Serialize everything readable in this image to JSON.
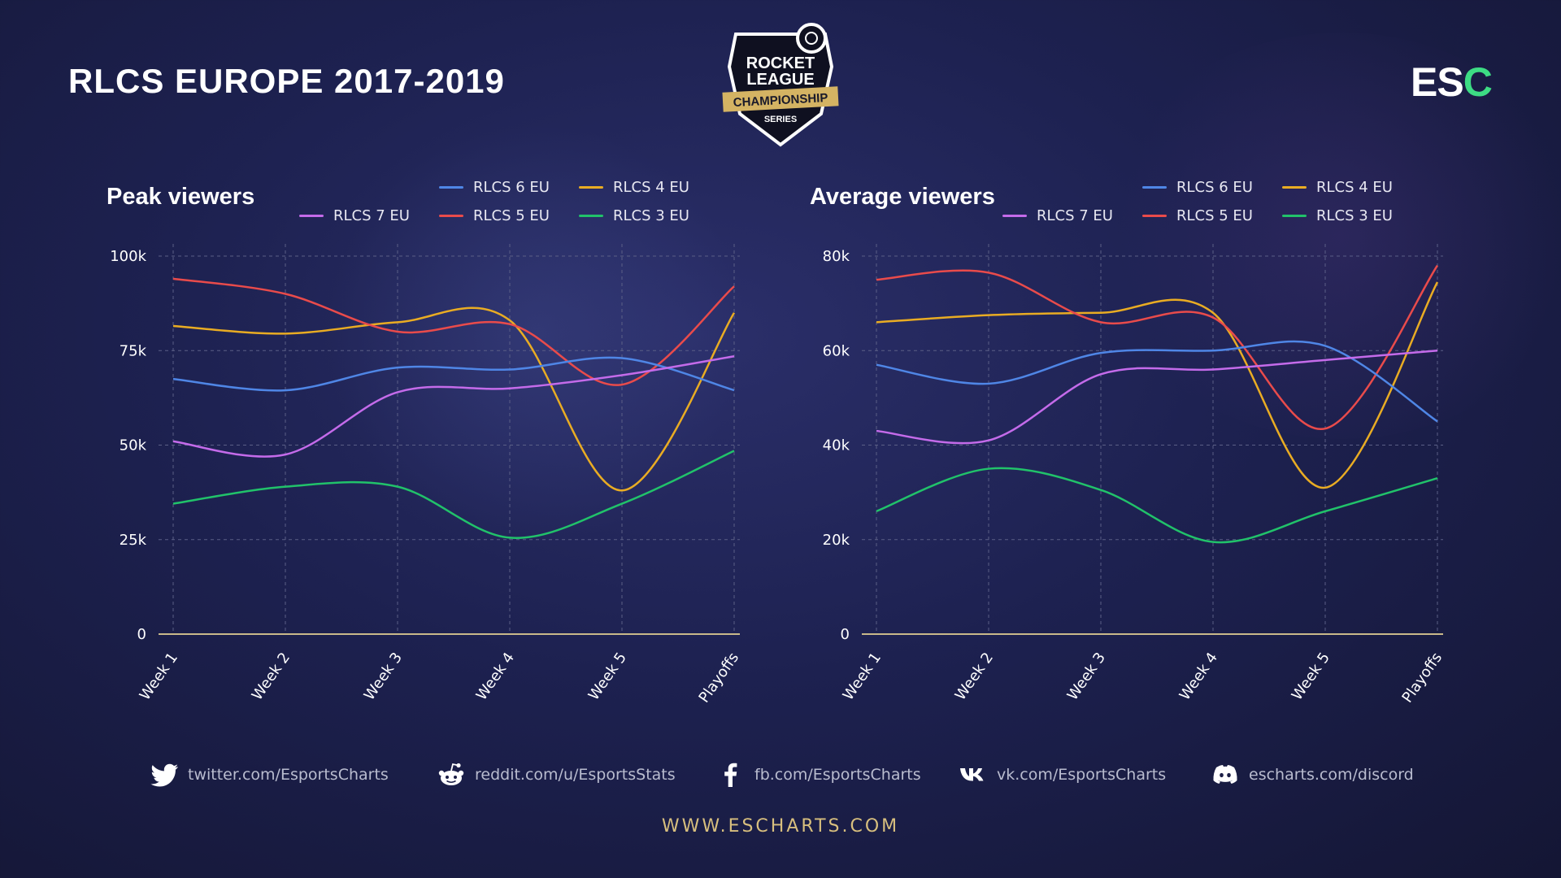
{
  "header": {
    "title": "RLCS EUROPE 2017-2019",
    "logo": {
      "line1": "ROCKET",
      "line2": "LEAGUE",
      "band": "CHAMPIONSHIP",
      "sub": "SERIES"
    },
    "brand": {
      "main": "ES",
      "accent": "C"
    }
  },
  "colors": {
    "RLCS 7 EU": "#c46bea",
    "RLCS 6 EU": "#4f86e6",
    "RLCS 5 EU": "#e94b4b",
    "RLCS 4 EU": "#e9ac23",
    "RLCS 3 EU": "#21c26a",
    "axis": "#c9b98a",
    "grid": "#5b5f86",
    "tick": "#ffffff"
  },
  "chart_data": [
    {
      "type": "line",
      "title": "Peak viewers",
      "xlabel": "",
      "ylabel": "",
      "categories": [
        "Week 1",
        "Week 2",
        "Week 3",
        "Week 4",
        "Week 5",
        "Playoffs"
      ],
      "ylim": [
        0,
        100000
      ],
      "yticks": [
        0,
        25000,
        50000,
        75000,
        100000
      ],
      "ytick_labels": [
        "0",
        "25k",
        "50k",
        "75k",
        "100k"
      ],
      "legend_position": "top-right",
      "grid": true,
      "series": [
        {
          "name": "RLCS 7 EU",
          "values": [
            51000,
            47500,
            64000,
            65000,
            68500,
            73500
          ]
        },
        {
          "name": "RLCS 6 EU",
          "values": [
            67500,
            64500,
            70500,
            70000,
            73000,
            64500
          ]
        },
        {
          "name": "RLCS 5 EU",
          "values": [
            94000,
            90000,
            80000,
            82000,
            66000,
            92000
          ]
        },
        {
          "name": "RLCS 4 EU",
          "values": [
            81500,
            79500,
            82500,
            83000,
            38000,
            85000
          ]
        },
        {
          "name": "RLCS 3 EU",
          "values": [
            34500,
            39000,
            39000,
            25500,
            34500,
            48500
          ]
        }
      ]
    },
    {
      "type": "line",
      "title": "Average viewers",
      "xlabel": "",
      "ylabel": "",
      "categories": [
        "Week 1",
        "Week 2",
        "Week 3",
        "Week 4",
        "Week 5",
        "Playoffs"
      ],
      "ylim": [
        0,
        80000
      ],
      "yticks": [
        0,
        20000,
        40000,
        60000,
        80000
      ],
      "ytick_labels": [
        "0",
        "20k",
        "40k",
        "60k",
        "80k"
      ],
      "legend_position": "top-right",
      "grid": true,
      "series": [
        {
          "name": "RLCS 7 EU",
          "values": [
            43000,
            41000,
            55000,
            56000,
            58000,
            60000
          ]
        },
        {
          "name": "RLCS 6 EU",
          "values": [
            57000,
            53000,
            59500,
            60000,
            61000,
            45000
          ]
        },
        {
          "name": "RLCS 5 EU",
          "values": [
            75000,
            76500,
            66000,
            67000,
            43500,
            78000
          ]
        },
        {
          "name": "RLCS 4 EU",
          "values": [
            66000,
            67500,
            68000,
            68000,
            31000,
            74500
          ]
        },
        {
          "name": "RLCS 3 EU",
          "values": [
            26000,
            35000,
            30500,
            19500,
            26000,
            33000
          ]
        }
      ]
    }
  ],
  "legend_order": [
    "RLCS 6 EU",
    "RLCS 4 EU",
    "RLCS 7 EU",
    "RLCS 5 EU",
    "RLCS 3 EU"
  ],
  "social": [
    {
      "icon": "twitter-icon",
      "text": "twitter.com/EsportsCharts"
    },
    {
      "icon": "reddit-icon",
      "text": "reddit.com/u/EsportsStats"
    },
    {
      "icon": "facebook-icon",
      "text": "fb.com/EsportsCharts"
    },
    {
      "icon": "vk-icon",
      "text": "vk.com/EsportsCharts"
    },
    {
      "icon": "discord-icon",
      "text": "escharts.com/discord"
    }
  ],
  "footer": {
    "website": "WWW.ESCHARTS.COM"
  }
}
